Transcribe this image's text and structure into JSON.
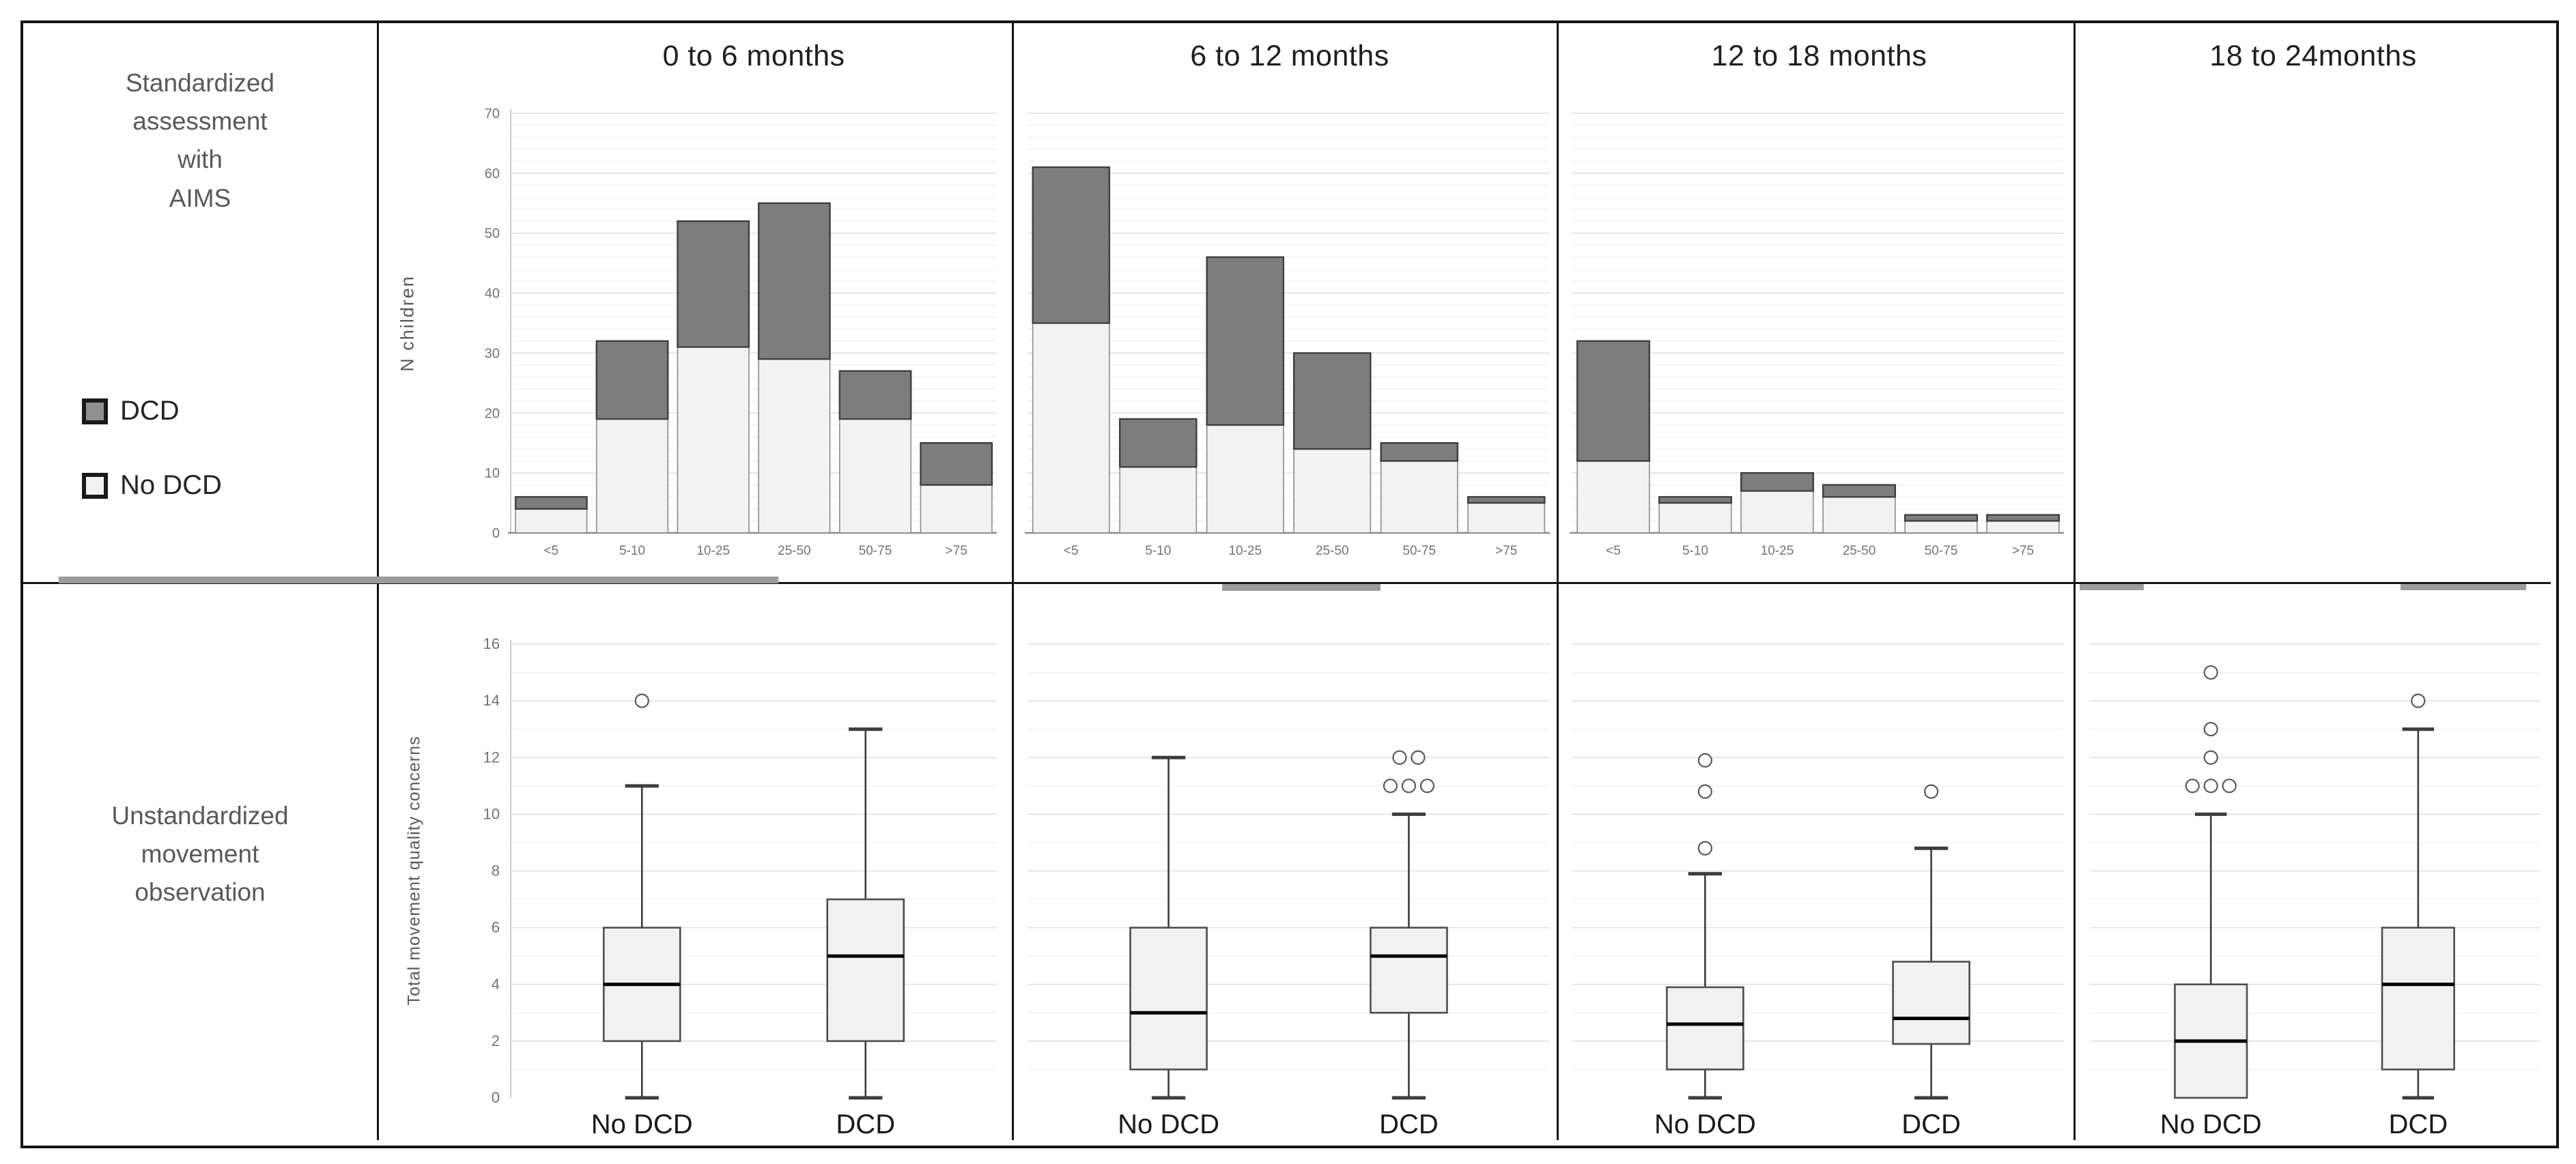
{
  "figure": {
    "row1_label_lines": [
      "Standardized",
      "assessment",
      "with",
      "AIMS"
    ],
    "row2_label_lines": [
      "Unstandardized",
      "movement",
      "observation"
    ],
    "column_headers": [
      "0 to 6 months",
      "6 to 12 months",
      "12 to 18 months",
      "18 to 24months"
    ],
    "legend": {
      "items": [
        {
          "label": "DCD",
          "swatch": "dcd"
        },
        {
          "label": "No DCD",
          "swatch": "no_dcd"
        }
      ]
    }
  },
  "colors": {
    "bar_no_dcd_fill": "#f2f2f2",
    "bar_no_dcd_stroke": "#8c8c8c",
    "bar_dcd_fill": "#7d7d7d",
    "bar_dcd_stroke": "#3f3f3f",
    "legend_dcd_fill": "#909090",
    "legend_no_dcd_fill": "#f2f2f2",
    "box_fill": "#f1f1f1",
    "box_stroke": "#4d4d4d",
    "median": "#000000",
    "whisker": "#3d3d3d",
    "outlier_stroke": "#595959",
    "grid_minor": "#f2f2f2",
    "grid_major": "#e2e2e2",
    "axis_line": "#8c8c8c",
    "y_axis_line": "#c9c9c9",
    "tick_text": "#737373",
    "cat_text": "#1a1a1a"
  },
  "chart_data": [
    {
      "id": "hist-0-6",
      "type": "bar",
      "stacked": true,
      "title": "0 to 6 months",
      "ylabel": "N children",
      "ylim": [
        0,
        70
      ],
      "ytick_step": 10,
      "grid_minor_step": 2,
      "show_y_labels": true,
      "categories": [
        "<5",
        "5-10",
        "10-25",
        "25-50",
        "50-75",
        ">75"
      ],
      "series": [
        {
          "name": "No DCD",
          "values": [
            4,
            19,
            31,
            29,
            19,
            8
          ]
        },
        {
          "name": "DCD",
          "values": [
            2,
            13,
            21,
            26,
            8,
            7
          ]
        }
      ]
    },
    {
      "id": "hist-6-12",
      "type": "bar",
      "stacked": true,
      "title": "6 to 12 months",
      "ylabel": "",
      "ylim": [
        0,
        70
      ],
      "ytick_step": 10,
      "grid_minor_step": 2,
      "show_y_labels": false,
      "categories": [
        "<5",
        "5-10",
        "10-25",
        "25-50",
        "50-75",
        ">75"
      ],
      "series": [
        {
          "name": "No DCD",
          "values": [
            35,
            11,
            18,
            14,
            12,
            5
          ]
        },
        {
          "name": "DCD",
          "values": [
            26,
            8,
            28,
            16,
            3,
            1
          ]
        }
      ]
    },
    {
      "id": "hist-12-18",
      "type": "bar",
      "stacked": true,
      "title": "12 to 18 months",
      "ylabel": "",
      "ylim": [
        0,
        70
      ],
      "ytick_step": 10,
      "grid_minor_step": 2,
      "show_y_labels": false,
      "categories": [
        "<5",
        "5-10",
        "10-25",
        "25-50",
        "50-75",
        ">75"
      ],
      "series": [
        {
          "name": "No DCD",
          "values": [
            12,
            5,
            7,
            6,
            2,
            2
          ]
        },
        {
          "name": "DCD",
          "values": [
            20,
            1,
            3,
            2,
            1,
            1
          ]
        }
      ]
    },
    {
      "id": "box-0-6",
      "type": "boxplot",
      "panel": "0 to 6 months",
      "ylabel": "Total movement quality concerns",
      "ylim": [
        0,
        16
      ],
      "ytick_step": 2,
      "grid_minor_step": 1,
      "show_y_labels": true,
      "categories": [
        "No DCD",
        "DCD"
      ],
      "boxes": [
        {
          "label": "No DCD",
          "min": 0,
          "q1": 2,
          "median": 4,
          "q3": 6,
          "max": 11,
          "outliers": [
            14
          ]
        },
        {
          "label": "DCD",
          "min": 0,
          "q1": 2,
          "median": 5,
          "q3": 7,
          "max": 13,
          "outliers": []
        }
      ]
    },
    {
      "id": "box-6-12",
      "type": "boxplot",
      "panel": "6 to 12 months",
      "ylabel": "",
      "ylim": [
        0,
        16
      ],
      "ytick_step": 2,
      "grid_minor_step": 1,
      "show_y_labels": false,
      "categories": [
        "No DCD",
        "DCD"
      ],
      "boxes": [
        {
          "label": "No DCD",
          "min": 0,
          "q1": 1,
          "median": 3,
          "q3": 6,
          "max": 12,
          "outliers": []
        },
        {
          "label": "DCD",
          "min": 0,
          "q1": 3,
          "median": 5,
          "q3": 6,
          "max": 10,
          "outliers": [
            11,
            11,
            11,
            12,
            12
          ]
        }
      ]
    },
    {
      "id": "box-12-18",
      "type": "boxplot",
      "panel": "12 to 18 months",
      "ylabel": "",
      "ylim": [
        0,
        16
      ],
      "ytick_step": 2,
      "grid_minor_step": 1,
      "show_y_labels": false,
      "categories": [
        "No DCD",
        "DCD"
      ],
      "boxes": [
        {
          "label": "No DCD",
          "min": 0,
          "q1": 1,
          "median": 2.6,
          "q3": 3.9,
          "max": 7.9,
          "outliers": [
            8.8,
            10.8,
            11.9
          ]
        },
        {
          "label": "DCD",
          "min": 0,
          "q1": 1.9,
          "median": 2.8,
          "q3": 4.8,
          "max": 8.8,
          "outliers": [
            10.8
          ]
        }
      ]
    },
    {
      "id": "box-18-24",
      "type": "boxplot",
      "panel": "18 to 24months",
      "ylabel": "",
      "ylim": [
        0,
        16
      ],
      "ytick_step": 2,
      "grid_minor_step": 1,
      "show_y_labels": false,
      "categories": [
        "No DCD",
        "DCD"
      ],
      "boxes": [
        {
          "label": "No DCD",
          "min": 0,
          "q1": 0,
          "median": 2,
          "q3": 4,
          "max": 10,
          "outliers": [
            11,
            11,
            11,
            12,
            13,
            15
          ]
        },
        {
          "label": "DCD",
          "min": 0,
          "q1": 1,
          "median": 4,
          "q3": 6,
          "max": 13,
          "outliers": [
            14
          ]
        }
      ]
    }
  ]
}
